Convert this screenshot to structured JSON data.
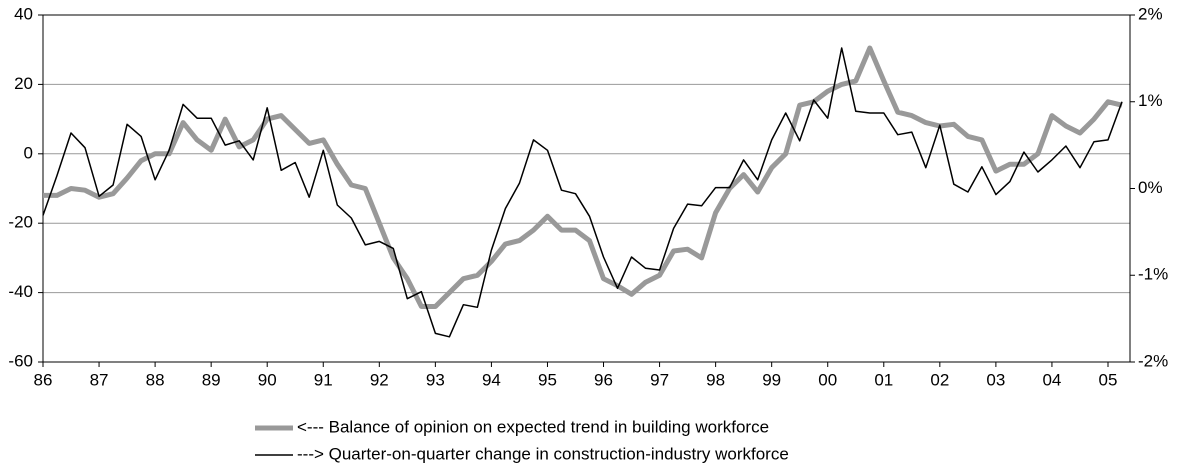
{
  "chart_data": {
    "type": "line",
    "categories": [
      "86",
      null,
      null,
      null,
      "87",
      null,
      null,
      null,
      "88",
      null,
      null,
      null,
      "89",
      null,
      null,
      null,
      "90",
      null,
      null,
      null,
      "91",
      null,
      null,
      null,
      "92",
      null,
      null,
      null,
      "93",
      null,
      null,
      null,
      "94",
      null,
      null,
      null,
      "95",
      null,
      null,
      null,
      "96",
      null,
      null,
      null,
      "97",
      null,
      null,
      null,
      "98",
      null,
      null,
      null,
      "99",
      null,
      null,
      null,
      "00",
      null,
      null,
      null,
      "01",
      null,
      null,
      null,
      "02",
      null,
      null,
      null,
      "03",
      null,
      null,
      null,
      "04",
      null,
      null,
      null,
      "05",
      null
    ],
    "series": [
      {
        "name": "<--- Balance of opinion on expected trend in building workforce",
        "color": "#999999",
        "axis": "y",
        "values": [
          -12,
          -12,
          -10,
          -10.5,
          -12.5,
          -11.5,
          -7,
          -2,
          0,
          0,
          9,
          4,
          1,
          10,
          2,
          4,
          10,
          11,
          7,
          3,
          4,
          -3,
          -9,
          -10,
          -20,
          -30,
          -36,
          -44,
          -44,
          -40,
          -36,
          -35,
          -31,
          -26,
          -25,
          -22,
          -18,
          -22,
          -22,
          -25,
          -36,
          -38,
          -40.5,
          -37,
          -35,
          -28,
          -27.5,
          -30,
          -17,
          -10,
          -6,
          -11,
          -4,
          0,
          14,
          15,
          18,
          20,
          21,
          30.5,
          21,
          12,
          11,
          9,
          8,
          8.5,
          5,
          4,
          -5,
          -3,
          -3,
          0,
          11,
          8,
          6,
          10,
          15,
          14
        ]
      },
      {
        "name": "---> Quarter-on-quarter change in construction-industry workforce",
        "color": "#000000",
        "axis": "y2",
        "values": [
          -0.31,
          0.15,
          0.64,
          0.47,
          -0.09,
          0.04,
          0.74,
          0.6,
          0.1,
          0.44,
          0.97,
          0.81,
          0.81,
          0.5,
          0.55,
          0.33,
          0.93,
          0.21,
          0.3,
          -0.1,
          0.44,
          -0.19,
          -0.34,
          -0.65,
          -0.61,
          -0.69,
          -1.27,
          -1.19,
          -1.67,
          -1.71,
          -1.34,
          -1.37,
          -0.71,
          -0.23,
          0.06,
          0.56,
          0.44,
          -0.02,
          -0.06,
          -0.32,
          -0.79,
          -1.15,
          -0.79,
          -0.92,
          -0.94,
          -0.46,
          -0.18,
          -0.2,
          0.01,
          0.01,
          0.33,
          0.1,
          0.56,
          0.87,
          0.55,
          1.02,
          0.81,
          1.62,
          0.89,
          0.87,
          0.87,
          0.62,
          0.65,
          0.24,
          0.73,
          0.05,
          -0.04,
          0.25,
          -0.07,
          0.08,
          0.42,
          0.19,
          0.33,
          0.49,
          0.24,
          0.54,
          0.56,
          1.0
        ]
      }
    ],
    "ylim": [
      -60,
      40
    ],
    "yticks": [
      -60,
      -40,
      -20,
      0,
      20,
      40
    ],
    "y2lim": [
      -2,
      2
    ],
    "y2ticks": [
      {
        "value": -2,
        "label": "-2%"
      },
      {
        "value": -1,
        "label": "-1%"
      },
      {
        "value": 0,
        "label": "0%"
      },
      {
        "value": 1,
        "label": "1%"
      },
      {
        "value": 2,
        "label": "2%"
      }
    ],
    "grid": true,
    "legend": "bottom"
  }
}
